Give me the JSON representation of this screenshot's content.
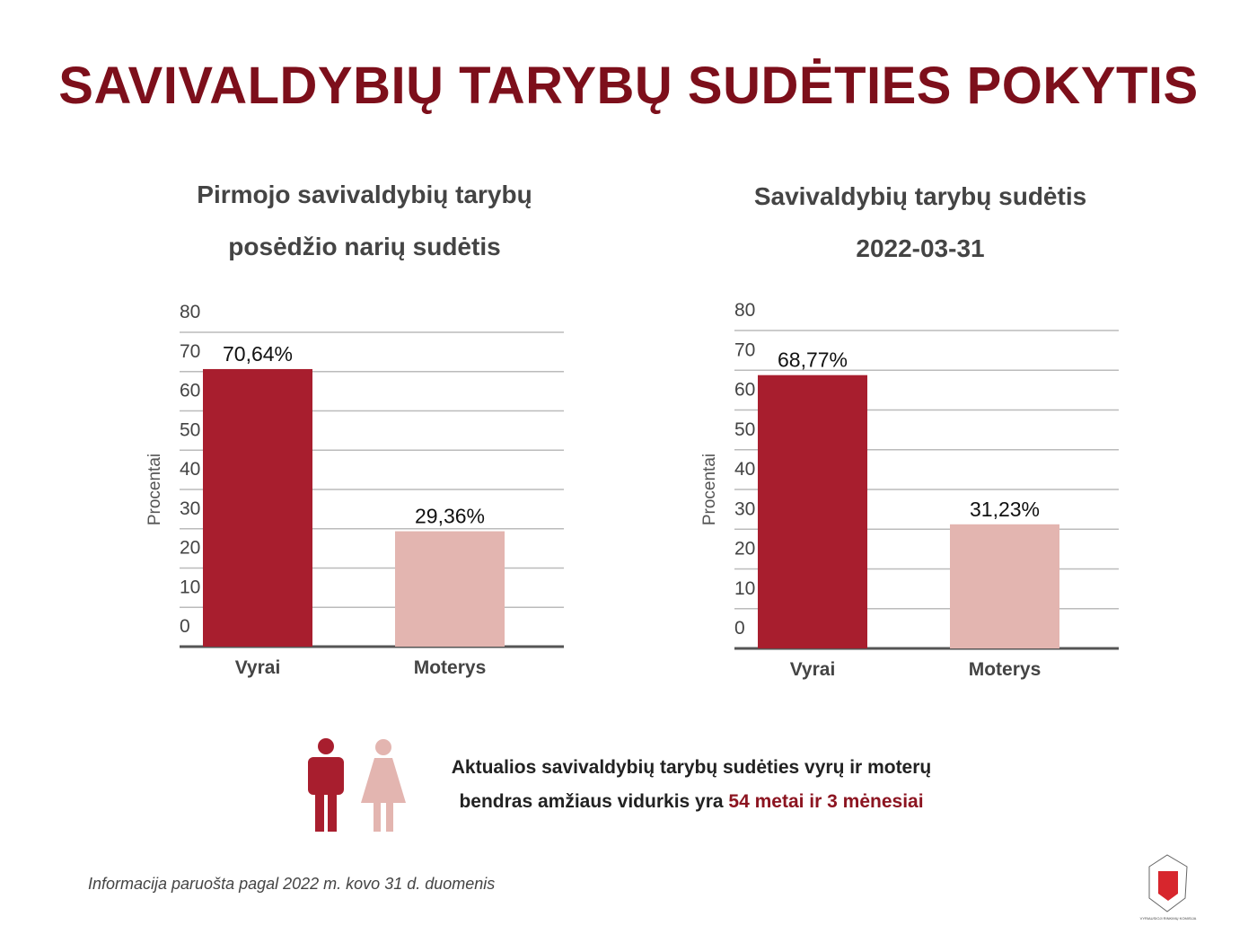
{
  "title": "SAVIVALDYBIŲ TARYBŲ SUDĖTIES POKYTIS",
  "note": {
    "text": "Aktualios savivaldybių tarybų sudėties vyrų ir moterų bendras amžiaus vidurkis yra",
    "highlight": "54 metai  ir 3 mėnesiai"
  },
  "footer": "Informacija paruošta pagal 2022 m. kovo 31 d. duomenis",
  "logo_text": "VYRIAUSIOJI RINKIMŲ KOMISIJA",
  "chart_data": [
    {
      "type": "bar",
      "title": "Pirmojo savivaldybių tarybų posėdžio narių sudėtis",
      "ylabel": "Procentai",
      "categories": [
        "Vyrai",
        "Moterys"
      ],
      "values": [
        70.64,
        29.36
      ],
      "value_labels": [
        "70,64%",
        "29,36%"
      ],
      "colors": [
        "#a81e2e",
        "#e3b5b0"
      ],
      "ylim": [
        0,
        80
      ],
      "yticks": [
        0,
        10,
        20,
        30,
        40,
        50,
        60,
        70,
        80
      ],
      "grid": true
    },
    {
      "type": "bar",
      "title": "Savivaldybių tarybų sudėtis",
      "subtitle": "2022-03-31",
      "ylabel": "Procentai",
      "categories": [
        "Vyrai",
        "Moterys"
      ],
      "values": [
        68.77,
        31.23
      ],
      "value_labels": [
        "68,77%",
        "31,23%"
      ],
      "colors": [
        "#a81e2e",
        "#e3b5b0"
      ],
      "ylim": [
        0,
        80
      ],
      "yticks": [
        0,
        10,
        20,
        30,
        40,
        50,
        60,
        70,
        80
      ],
      "grid": true
    }
  ]
}
